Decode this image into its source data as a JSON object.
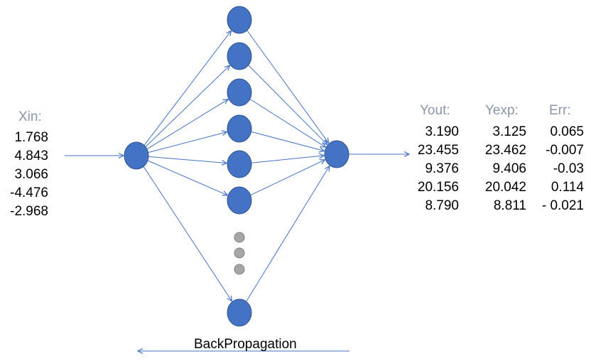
{
  "inputs": {
    "header": "Xin:",
    "values": [
      "1.768",
      "4.843",
      "3.066",
      "-4.476",
      "-2.968"
    ]
  },
  "outputs": {
    "yout": {
      "header": "Yout:",
      "values": [
        "3.190",
        "23.455",
        "9.376",
        "20.156",
        "8.790"
      ]
    },
    "yexp": {
      "header": "Yexp:",
      "values": [
        "3.125",
        "23.462",
        "9.406",
        "20.042",
        "8.811"
      ]
    },
    "err": {
      "header": "Err:",
      "values": [
        "0.065",
        "-0.007",
        "-0.03",
        "0.114",
        "- 0.021"
      ]
    }
  },
  "backprop_label": "BackPropagation",
  "colors": {
    "node": "#4472c4",
    "node_stroke": "#2f528f",
    "ellipsis_node": "#a6a6a6",
    "ellipsis_stroke": "#7f7f7f",
    "edge": "#4472c4",
    "header_text": "#8a95a8"
  }
}
